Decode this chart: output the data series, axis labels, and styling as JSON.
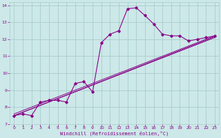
{
  "xlabel": "Windchill (Refroidissement éolien,°C)",
  "background_color": "#cce8e8",
  "grid_color": "#aacccc",
  "line_color": "#880088",
  "xlim": [
    -0.5,
    23.5
  ],
  "ylim": [
    7,
    14.2
  ],
  "xticks": [
    0,
    1,
    2,
    3,
    4,
    5,
    6,
    7,
    8,
    9,
    10,
    11,
    12,
    13,
    14,
    15,
    16,
    17,
    18,
    19,
    20,
    21,
    22,
    23
  ],
  "yticks": [
    7,
    8,
    9,
    10,
    11,
    12,
    13,
    14
  ],
  "main_x": [
    0,
    1,
    2,
    3,
    4,
    5,
    6,
    7,
    8,
    9,
    10,
    11,
    12,
    13,
    14,
    15,
    16,
    17,
    18,
    19,
    20,
    21,
    22,
    23
  ],
  "main_y": [
    7.5,
    7.6,
    7.5,
    8.3,
    8.4,
    8.4,
    8.3,
    9.4,
    9.5,
    8.9,
    11.8,
    12.3,
    12.5,
    13.8,
    13.85,
    13.4,
    12.9,
    12.3,
    12.2,
    12.2,
    11.9,
    12.0,
    12.1,
    12.2
  ],
  "ref_lines": [
    {
      "x": [
        0,
        23
      ],
      "y": [
        7.5,
        12.1
      ]
    },
    {
      "x": [
        0,
        23
      ],
      "y": [
        7.5,
        12.15
      ]
    },
    {
      "x": [
        0,
        23
      ],
      "y": [
        7.6,
        12.2
      ]
    }
  ]
}
